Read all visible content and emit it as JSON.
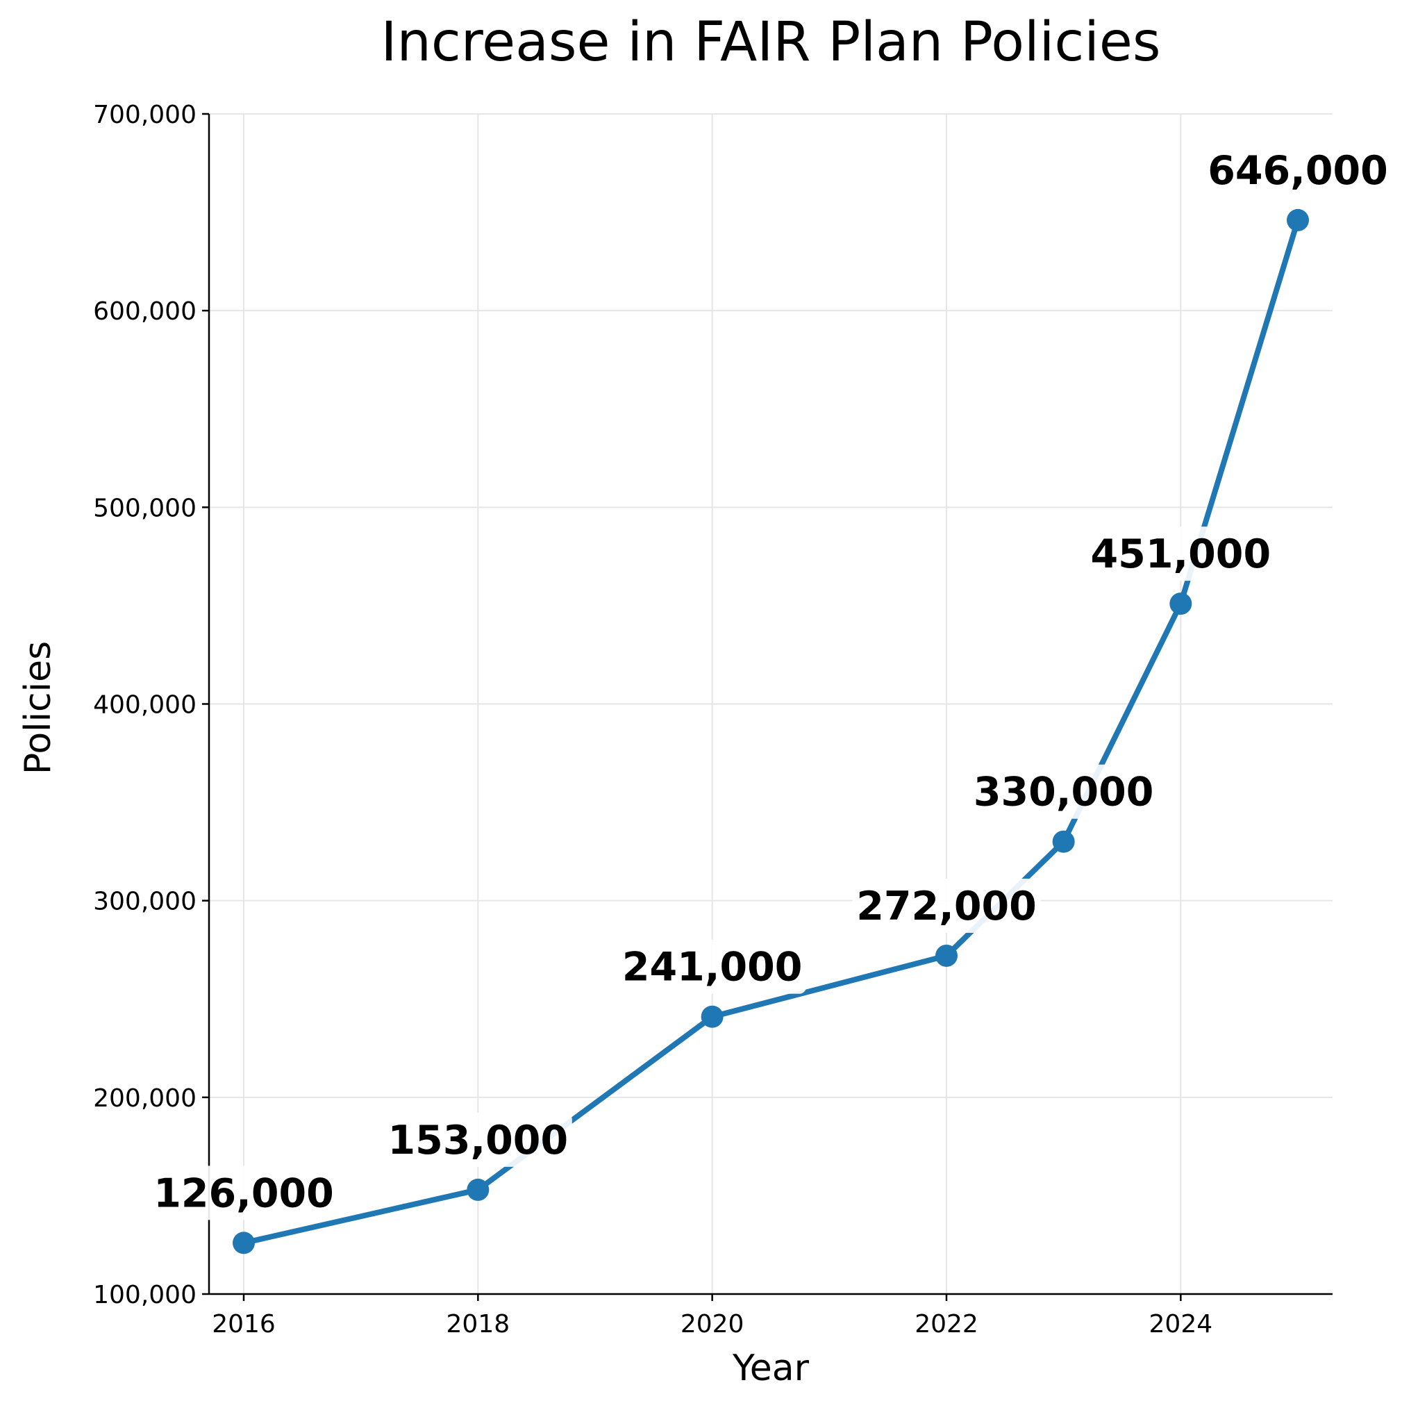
{
  "chart_data": {
    "type": "line",
    "title": "Increase in FAIR Plan Policies",
    "xlabel": "Year",
    "ylabel": "Policies",
    "x": [
      2016,
      2018,
      2020,
      2022,
      2023,
      2024,
      2025
    ],
    "series": [
      {
        "values": [
          126000,
          153000,
          241000,
          272000,
          330000,
          451000,
          646000
        ],
        "color": "#1f77b4"
      }
    ],
    "data_labels": [
      "126,000",
      "153,000",
      "241,000",
      "272,000",
      "330,000",
      "451,000",
      "646,000"
    ],
    "xticks": [
      2016,
      2018,
      2020,
      2022,
      2024
    ],
    "xtick_labels": [
      "2016",
      "2018",
      "2020",
      "2022",
      "2024"
    ],
    "yticks": [
      100000,
      200000,
      300000,
      400000,
      500000,
      600000,
      700000
    ],
    "ytick_labels": [
      "100,000",
      "200,000",
      "300,000",
      "400,000",
      "500,000",
      "600,000",
      "700,000"
    ],
    "xlim": [
      2015.85,
      2025.3
    ],
    "ylim": [
      100000,
      700000
    ],
    "grid": true
  }
}
